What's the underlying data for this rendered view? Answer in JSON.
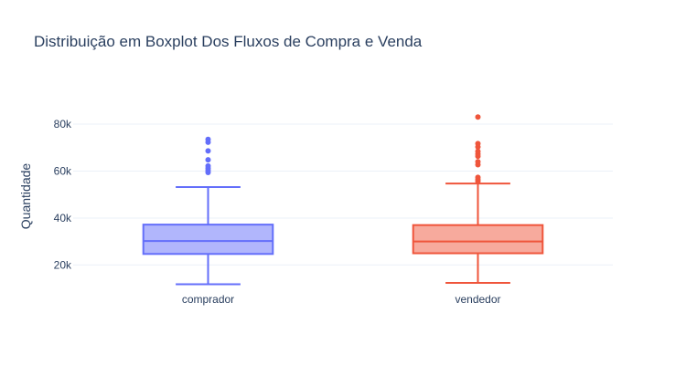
{
  "chart_data": {
    "type": "box",
    "title": "Distribuição em Boxplot Dos Fluxos de Compra e Venda",
    "xlabel": "",
    "ylabel": "Quantidade",
    "y_range": [
      8500,
      94000
    ],
    "y_ticks": [
      20000,
      40000,
      60000,
      80000
    ],
    "y_tick_labels": [
      "20k",
      "40k",
      "60k",
      "80k"
    ],
    "grid": true,
    "legend": "none",
    "categories": [
      "comprador",
      "vendedor"
    ],
    "series": [
      {
        "category": "comprador",
        "color": "#636efa",
        "min": 11800,
        "q1": 24700,
        "median": 30200,
        "q3": 37200,
        "max": 53200,
        "outliers": [
          59400,
          60300,
          61200,
          62200,
          64800,
          68600,
          72300,
          73500
        ]
      },
      {
        "category": "vendedor",
        "color": "#ef553b",
        "min": 12400,
        "q1": 25000,
        "median": 30000,
        "q3": 37000,
        "max": 54700,
        "outliers": [
          55600,
          56400,
          57300,
          62700,
          64000,
          66300,
          67300,
          68400,
          70300,
          71700,
          83000
        ]
      }
    ]
  }
}
